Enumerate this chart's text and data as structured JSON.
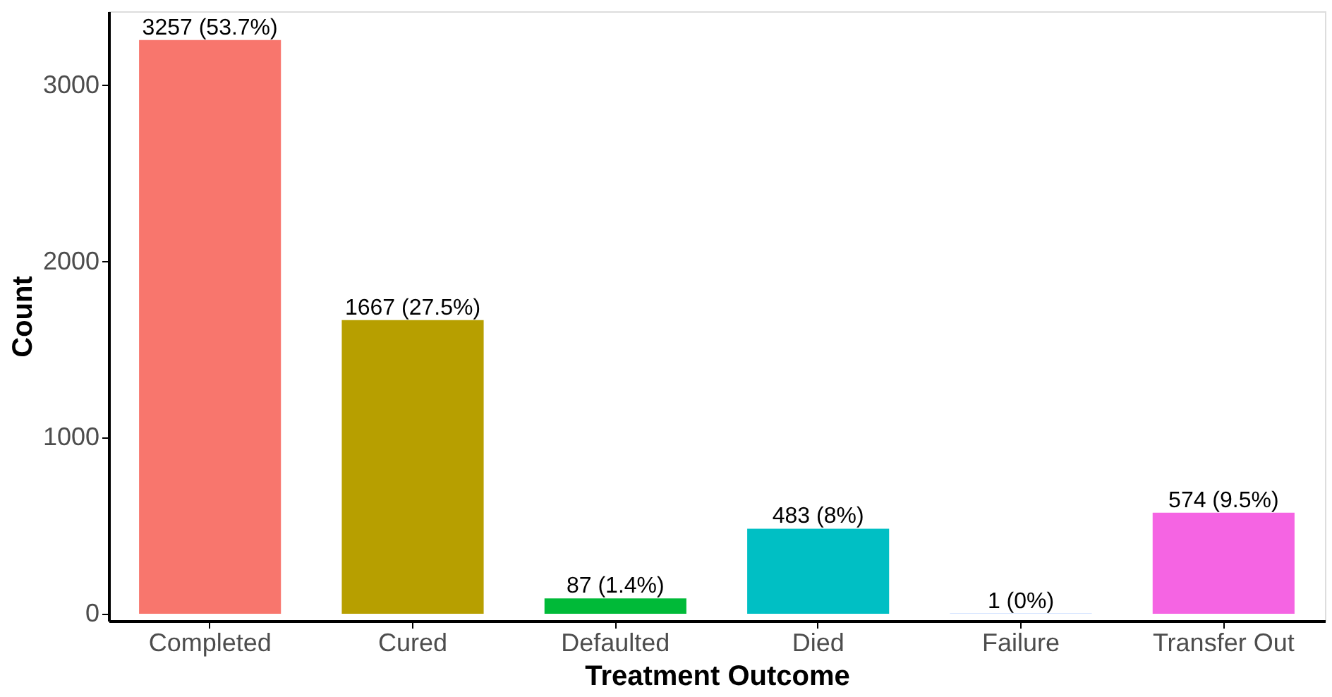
{
  "chart_data": {
    "type": "bar",
    "xlabel": "Treatment Outcome",
    "ylabel": "Count",
    "categories": [
      "Completed",
      "Cured",
      "Defaulted",
      "Died",
      "Failure",
      "Transfer Out"
    ],
    "values": [
      3257,
      1667,
      87,
      483,
      1,
      574
    ],
    "colors": [
      "#f8766d",
      "#b79f00",
      "#00ba38",
      "#00bfc4",
      "#619cff",
      "#f564e3"
    ],
    "value_labels": [
      "3257 (53.7%)",
      "1667 (27.5%)",
      "87 (1.4%)",
      "483 (8%)",
      "1 (0%)",
      "574 (9.5%)"
    ],
    "ylim": [
      -40,
      3420
    ],
    "yticks": [
      0,
      1000,
      2000,
      3000
    ],
    "grid": false
  }
}
